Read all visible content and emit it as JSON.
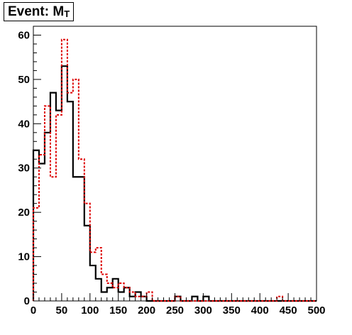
{
  "title": {
    "text": "Event: M",
    "subscript": "T"
  },
  "chart_data": {
    "type": "histogram",
    "title": "Event: M_T",
    "xlabel": "",
    "ylabel": "",
    "xlim": [
      0,
      500
    ],
    "ylim": [
      0,
      62
    ],
    "bin_width": 10,
    "grid": false,
    "x_ticks": [
      0,
      50,
      100,
      150,
      200,
      250,
      300,
      350,
      400,
      450,
      500
    ],
    "y_ticks": [
      0,
      10,
      20,
      30,
      40,
      50,
      60
    ],
    "bin_edges_start": 0,
    "series": [
      {
        "style": "solid",
        "color": "#000000",
        "values": [
          34,
          31,
          38,
          47,
          43,
          53,
          45,
          28,
          28,
          17,
          8,
          5,
          2,
          3,
          5,
          2,
          3,
          1,
          2,
          1,
          0,
          0,
          0,
          0,
          0,
          1,
          0,
          0,
          1,
          0,
          1,
          0,
          0,
          0,
          0,
          0,
          0,
          0,
          0,
          0,
          0,
          0,
          0,
          0,
          0,
          0,
          0,
          0,
          0,
          0
        ]
      },
      {
        "style": "dashed",
        "color": "#dd0000",
        "values": [
          21,
          33,
          44,
          28,
          42,
          59,
          47,
          50,
          32,
          22,
          11,
          12,
          6,
          4,
          3,
          4,
          3,
          2,
          1,
          1,
          2,
          0,
          0,
          0,
          0,
          1,
          0,
          0,
          0,
          0,
          0,
          0,
          0,
          0,
          0,
          0,
          0,
          0,
          0,
          0,
          0,
          0,
          0,
          1,
          0,
          0,
          0,
          0,
          0,
          0
        ]
      }
    ]
  }
}
